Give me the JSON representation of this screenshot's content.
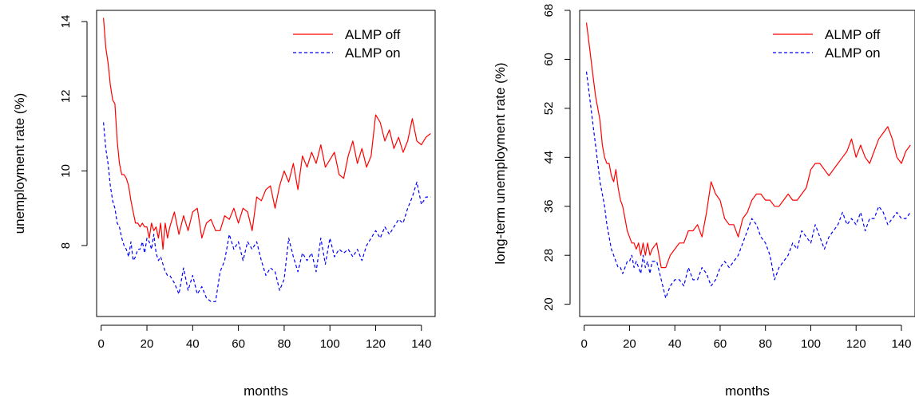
{
  "chart_data": [
    {
      "type": "line",
      "xlabel": "months",
      "ylabel": "unemployment rate (%)",
      "xlim": [
        -2,
        146
      ],
      "ylim": [
        6.1,
        14.3
      ],
      "xticks": [
        0,
        20,
        40,
        60,
        80,
        100,
        120,
        140
      ],
      "yticks": [
        8,
        10,
        12,
        14
      ],
      "grid": false,
      "legend": "top-right",
      "series": [
        {
          "name": "ALMP off",
          "color": "#ff0000",
          "dash": "solid",
          "x": [
            1,
            2,
            3,
            4,
            5,
            6,
            7,
            8,
            9,
            10,
            11,
            12,
            13,
            14,
            15,
            16,
            17,
            18,
            19,
            20,
            21,
            22,
            23,
            24,
            25,
            26,
            27,
            28,
            29,
            30,
            32,
            34,
            36,
            38,
            40,
            42,
            44,
            46,
            48,
            50,
            52,
            54,
            56,
            58,
            60,
            62,
            64,
            66,
            68,
            70,
            72,
            74,
            76,
            78,
            80,
            82,
            84,
            86,
            88,
            90,
            92,
            94,
            96,
            98,
            100,
            102,
            104,
            106,
            108,
            110,
            112,
            114,
            116,
            118,
            120,
            122,
            124,
            126,
            128,
            130,
            132,
            134,
            136,
            138,
            140,
            142,
            144
          ],
          "values": [
            14.1,
            13.3,
            12.9,
            12.3,
            11.9,
            11.8,
            10.8,
            10.2,
            9.9,
            9.9,
            9.8,
            9.6,
            9.2,
            8.9,
            8.6,
            8.6,
            8.5,
            8.6,
            8.5,
            8.5,
            8.2,
            8.6,
            8.4,
            8.5,
            8.2,
            8.6,
            7.9,
            8.6,
            8.2,
            8.5,
            8.9,
            8.3,
            8.8,
            8.4,
            8.9,
            9.0,
            8.2,
            8.6,
            8.7,
            8.4,
            8.4,
            8.8,
            8.7,
            9.0,
            8.6,
            9.0,
            8.9,
            8.4,
            9.3,
            9.2,
            9.5,
            9.6,
            9.0,
            9.6,
            10.0,
            9.7,
            10.2,
            9.5,
            10.4,
            10.1,
            10.5,
            10.2,
            10.7,
            10.1,
            10.3,
            10.5,
            9.9,
            9.8,
            10.4,
            10.8,
            10.2,
            10.6,
            10.1,
            10.4,
            11.5,
            11.3,
            10.8,
            11.1,
            10.6,
            10.9,
            10.5,
            10.8,
            11.4,
            10.8,
            10.7,
            10.9,
            11.0
          ]
        },
        {
          "name": "ALMP on",
          "color": "#0000ff",
          "dash": "dashed",
          "x": [
            1,
            2,
            3,
            4,
            5,
            6,
            7,
            8,
            9,
            10,
            11,
            12,
            13,
            14,
            15,
            16,
            17,
            18,
            19,
            20,
            21,
            22,
            23,
            24,
            25,
            26,
            27,
            28,
            29,
            30,
            32,
            34,
            36,
            38,
            40,
            42,
            44,
            46,
            48,
            50,
            52,
            54,
            56,
            58,
            60,
            62,
            64,
            66,
            68,
            70,
            72,
            74,
            76,
            78,
            80,
            82,
            84,
            86,
            88,
            90,
            92,
            94,
            96,
            98,
            100,
            102,
            104,
            106,
            108,
            110,
            112,
            114,
            116,
            118,
            120,
            122,
            124,
            126,
            128,
            130,
            132,
            134,
            136,
            138,
            140,
            142,
            144
          ],
          "values": [
            11.3,
            10.6,
            10.2,
            9.6,
            9.2,
            9.0,
            8.6,
            8.5,
            8.2,
            8.0,
            7.9,
            7.7,
            8.1,
            7.6,
            7.7,
            7.9,
            7.9,
            8.1,
            7.8,
            8.2,
            8.1,
            7.9,
            8.3,
            7.8,
            7.6,
            7.7,
            7.5,
            7.3,
            7.2,
            7.2,
            7.0,
            6.7,
            7.4,
            6.8,
            7.2,
            6.7,
            6.9,
            6.6,
            6.5,
            6.5,
            7.3,
            7.6,
            8.3,
            7.9,
            8.1,
            7.6,
            8.1,
            7.9,
            8.1,
            7.6,
            7.2,
            7.4,
            7.3,
            6.8,
            7.1,
            8.2,
            7.7,
            7.3,
            7.8,
            7.6,
            7.8,
            7.3,
            8.2,
            7.5,
            8.2,
            7.7,
            7.9,
            7.8,
            7.9,
            7.7,
            7.9,
            7.6,
            8.0,
            8.2,
            8.4,
            8.2,
            8.5,
            8.3,
            8.5,
            8.7,
            8.6,
            9.0,
            9.3,
            9.7,
            9.1,
            9.3,
            9.3
          ]
        }
      ]
    },
    {
      "type": "line",
      "xlabel": "months",
      "ylabel": "long-term unemployment rate (%)",
      "xlim": [
        -2,
        146
      ],
      "ylim": [
        18,
        68
      ],
      "xticks": [
        0,
        20,
        40,
        60,
        80,
        100,
        120,
        140
      ],
      "yticks": [
        20,
        28,
        36,
        44,
        52,
        60,
        68
      ],
      "grid": false,
      "legend": "top-right",
      "series": [
        {
          "name": "ALMP off",
          "color": "#ff0000",
          "dash": "solid",
          "x": [
            1,
            2,
            3,
            4,
            5,
            6,
            7,
            8,
            9,
            10,
            11,
            12,
            13,
            14,
            15,
            16,
            17,
            18,
            19,
            20,
            21,
            22,
            23,
            24,
            25,
            26,
            27,
            28,
            29,
            30,
            32,
            34,
            36,
            38,
            40,
            42,
            44,
            46,
            48,
            50,
            52,
            54,
            56,
            58,
            60,
            62,
            64,
            66,
            68,
            70,
            72,
            74,
            76,
            78,
            80,
            82,
            84,
            86,
            88,
            90,
            92,
            94,
            96,
            98,
            100,
            102,
            104,
            106,
            108,
            110,
            112,
            114,
            116,
            118,
            120,
            122,
            124,
            126,
            128,
            130,
            132,
            134,
            136,
            138,
            140,
            142,
            144
          ],
          "values": [
            66,
            63,
            60,
            57,
            54,
            52,
            50,
            46,
            44,
            43,
            43,
            41,
            40,
            42,
            39,
            37,
            36,
            34,
            32,
            31,
            30,
            30,
            29,
            30,
            28,
            30,
            28,
            30,
            28,
            29,
            30,
            26,
            26,
            28,
            29,
            30,
            30,
            32,
            32,
            33,
            31,
            35,
            40,
            38,
            37,
            34,
            33,
            33,
            31,
            34,
            35,
            37,
            38,
            38,
            37,
            37,
            36,
            36,
            37,
            38,
            37,
            37,
            38,
            39,
            42,
            43,
            43,
            42,
            41,
            42,
            43,
            44,
            45,
            47,
            44,
            46,
            44,
            43,
            45,
            47,
            48,
            49,
            47,
            44,
            43,
            45,
            46
          ]
        },
        {
          "name": "ALMP on",
          "color": "#0000ff",
          "dash": "dashed",
          "x": [
            1,
            2,
            3,
            4,
            5,
            6,
            7,
            8,
            9,
            10,
            11,
            12,
            13,
            14,
            15,
            16,
            17,
            18,
            19,
            20,
            21,
            22,
            23,
            24,
            25,
            26,
            27,
            28,
            29,
            30,
            32,
            34,
            36,
            38,
            40,
            42,
            44,
            46,
            48,
            50,
            52,
            54,
            56,
            58,
            60,
            62,
            64,
            66,
            68,
            70,
            72,
            74,
            76,
            78,
            80,
            82,
            84,
            86,
            88,
            90,
            92,
            94,
            96,
            98,
            100,
            102,
            104,
            106,
            108,
            110,
            112,
            114,
            116,
            118,
            120,
            122,
            124,
            126,
            128,
            130,
            132,
            134,
            136,
            138,
            140,
            142,
            144
          ],
          "values": [
            58,
            55,
            52,
            49,
            46,
            43,
            40,
            38,
            36,
            33,
            31,
            29,
            28,
            27,
            26,
            26,
            25,
            26,
            27,
            27,
            28,
            26,
            27,
            26,
            25,
            28,
            26,
            27,
            25,
            27,
            27,
            24,
            21,
            23,
            24,
            24,
            23,
            26,
            24,
            24,
            26,
            25,
            23,
            24,
            26,
            27,
            26,
            27,
            28,
            30,
            32,
            34,
            33,
            31,
            30,
            28,
            24,
            26,
            27,
            28,
            30,
            29,
            32,
            31,
            30,
            33,
            31,
            29,
            31,
            32,
            33,
            35,
            33,
            34,
            33,
            35,
            32,
            34,
            34,
            36,
            35,
            33,
            34,
            35,
            34,
            34,
            35
          ]
        }
      ]
    }
  ]
}
